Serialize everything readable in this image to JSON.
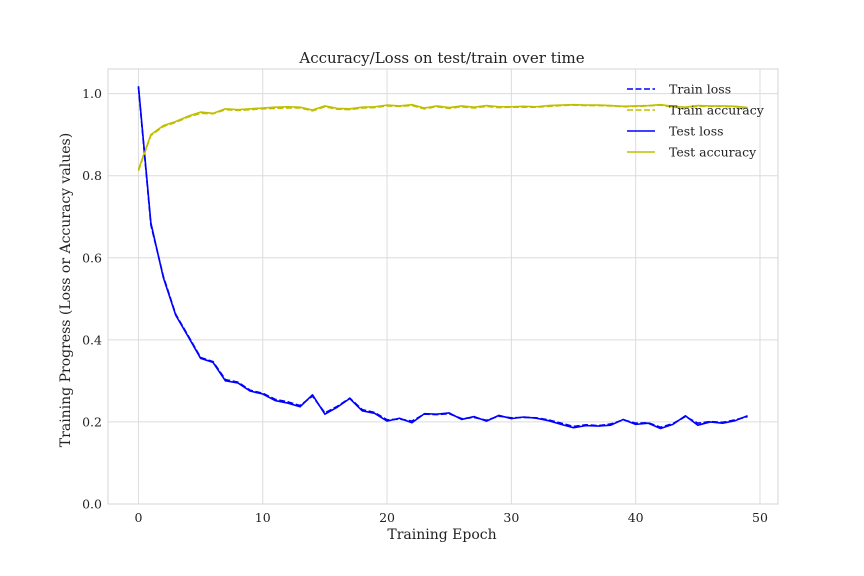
{
  "chart_data": {
    "type": "line",
    "title": "Accuracy/Loss on test/train over time",
    "xlabel": "Training Epoch",
    "ylabel": "Training Progress (Loss or Accuracy values)",
    "xlim": [
      -2.45,
      51.45
    ],
    "ylim": [
      0.0,
      1.06
    ],
    "xticks": [
      0,
      10,
      20,
      30,
      40,
      50
    ],
    "yticks": [
      0.0,
      0.2,
      0.4,
      0.6,
      0.8,
      1.0
    ],
    "xtick_labels": [
      "0",
      "10",
      "20",
      "30",
      "40",
      "50"
    ],
    "ytick_labels": [
      "0.0",
      "0.2",
      "0.4",
      "0.6",
      "0.8",
      "1.0"
    ],
    "grid": true,
    "legend_position": "top-right",
    "x": [
      0,
      1,
      2,
      3,
      4,
      5,
      6,
      7,
      8,
      9,
      10,
      11,
      12,
      13,
      14,
      15,
      16,
      17,
      18,
      19,
      20,
      21,
      22,
      23,
      24,
      25,
      26,
      27,
      28,
      29,
      30,
      31,
      32,
      33,
      34,
      35,
      36,
      37,
      38,
      39,
      40,
      41,
      42,
      43,
      44,
      45,
      46,
      47,
      48,
      49
    ],
    "series": [
      {
        "name": "Train loss",
        "color": "#0000ff",
        "dash": "dashed",
        "values": [
          1.015,
          0.68,
          0.555,
          0.462,
          0.41,
          0.357,
          0.347,
          0.303,
          0.297,
          0.277,
          0.27,
          0.255,
          0.249,
          0.24,
          0.263,
          0.222,
          0.238,
          0.258,
          0.23,
          0.223,
          0.205,
          0.207,
          0.202,
          0.219,
          0.218,
          0.22,
          0.208,
          0.211,
          0.204,
          0.214,
          0.21,
          0.211,
          0.21,
          0.205,
          0.197,
          0.189,
          0.193,
          0.191,
          0.195,
          0.205,
          0.197,
          0.198,
          0.187,
          0.196,
          0.213,
          0.197,
          0.201,
          0.199,
          0.205,
          0.213
        ]
      },
      {
        "name": "Train accuracy",
        "color": "#bfbf00",
        "dash": "dashed",
        "values": [
          0.812,
          0.898,
          0.92,
          0.93,
          0.943,
          0.952,
          0.951,
          0.961,
          0.959,
          0.961,
          0.963,
          0.964,
          0.965,
          0.965,
          0.958,
          0.968,
          0.962,
          0.961,
          0.965,
          0.966,
          0.97,
          0.969,
          0.971,
          0.963,
          0.968,
          0.964,
          0.968,
          0.965,
          0.969,
          0.966,
          0.967,
          0.967,
          0.967,
          0.969,
          0.971,
          0.972,
          0.971,
          0.971,
          0.97,
          0.968,
          0.969,
          0.97,
          0.972,
          0.967,
          0.966,
          0.969,
          0.969,
          0.969,
          0.968,
          0.965
        ]
      },
      {
        "name": "Test loss",
        "color": "#0000ff",
        "dash": "solid",
        "values": [
          1.018,
          0.685,
          0.552,
          0.46,
          0.408,
          0.355,
          0.345,
          0.3,
          0.295,
          0.275,
          0.268,
          0.252,
          0.246,
          0.237,
          0.266,
          0.219,
          0.236,
          0.257,
          0.227,
          0.221,
          0.202,
          0.209,
          0.198,
          0.22,
          0.219,
          0.222,
          0.206,
          0.213,
          0.202,
          0.216,
          0.208,
          0.212,
          0.209,
          0.203,
          0.194,
          0.186,
          0.191,
          0.19,
          0.192,
          0.206,
          0.194,
          0.197,
          0.184,
          0.194,
          0.215,
          0.192,
          0.2,
          0.197,
          0.203,
          0.215
        ]
      },
      {
        "name": "Test accuracy",
        "color": "#bfbf00",
        "dash": "solid",
        "values": [
          0.815,
          0.9,
          0.922,
          0.932,
          0.945,
          0.955,
          0.952,
          0.963,
          0.961,
          0.963,
          0.965,
          0.967,
          0.968,
          0.967,
          0.96,
          0.97,
          0.964,
          0.963,
          0.967,
          0.968,
          0.972,
          0.97,
          0.973,
          0.965,
          0.97,
          0.966,
          0.97,
          0.967,
          0.971,
          0.968,
          0.968,
          0.969,
          0.968,
          0.971,
          0.972,
          0.973,
          0.972,
          0.972,
          0.971,
          0.969,
          0.97,
          0.971,
          0.973,
          0.969,
          0.967,
          0.971,
          0.97,
          0.97,
          0.969,
          0.966
        ]
      }
    ]
  }
}
